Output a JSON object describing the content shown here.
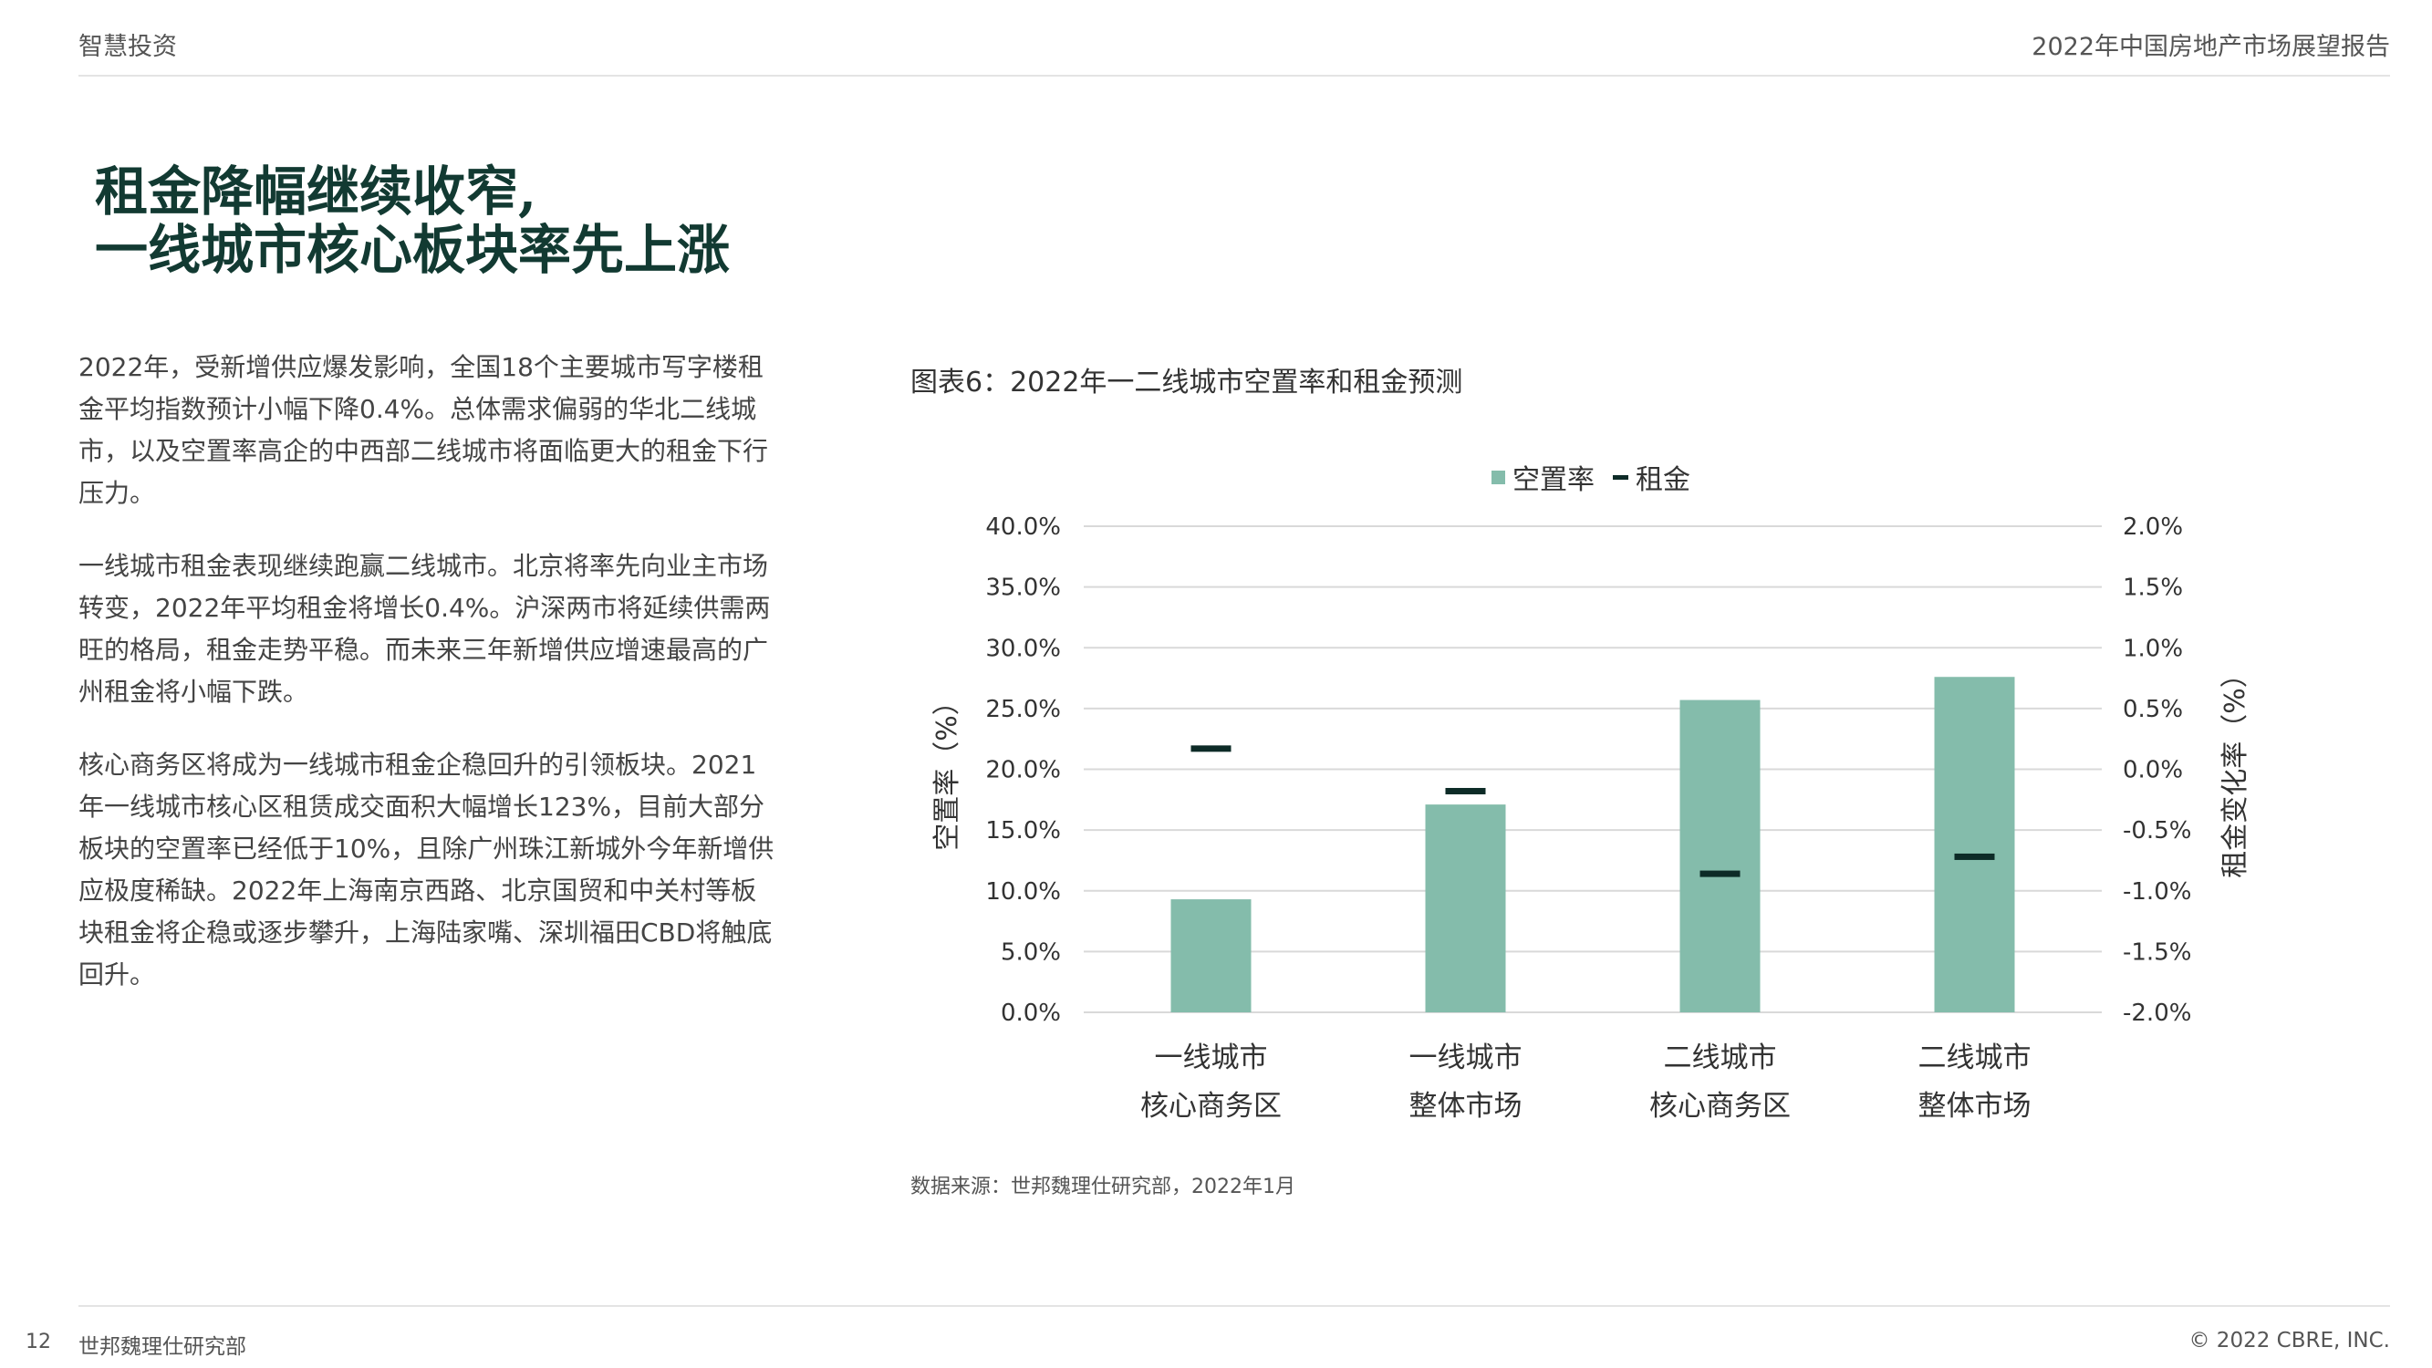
{
  "header": {
    "left": "智慧投资",
    "right": "2022年中国房地产市场展望报告"
  },
  "title": {
    "line1": "租金降幅继续收窄,",
    "line2": "一线城市核心板块率先上涨"
  },
  "body": {
    "p1": "2022年，受新增供应爆发影响，全国18个主要城市写字楼租金平均指数预计小幅下降0.4%。总体需求偏弱的华北二线城市，以及空置率高企的中西部二线城市将面临更大的租金下行压力。",
    "p2": "一线城市租金表现继续跑赢二线城市。北京将率先向业主市场转变，2022年平均租金将增长0.4%。沪深两市将延续供需两旺的格局，租金走势平稳。而未来三年新增供应增速最高的广州租金将小幅下跌。",
    "p3": "核心商务区将成为一线城市租金企稳回升的引领板块。2021年一线城市核心区租赁成交面积大幅增长123%，目前大部分板块的空置率已经低于10%，且除广州珠江新城外今年新增供应极度稀缺。2022年上海南京西路、北京国贸和中关村等板块租金将企稳或逐步攀升，上海陆家嘴、深圳福田CBD将触底回升。"
  },
  "figure": {
    "title": "图表6：2022年一二线城市空置率和租金预测"
  },
  "source": "数据来源：世邦魏理仕研究部，2022年1月",
  "footer": {
    "page": "12",
    "left": "世邦魏理仕研究部",
    "right": "© 2022 CBRE, INC."
  },
  "colors": {
    "bar": "#84bcab",
    "marker": "#0d2b27",
    "title": "#123a32",
    "grid": "#d9d9d9"
  },
  "chart_data": {
    "type": "bar",
    "categories": [
      [
        "一线城市",
        "核心商务区"
      ],
      [
        "一线城市",
        "整体市场"
      ],
      [
        "二线城市",
        "核心商务区"
      ],
      [
        "二线城市",
        "整体市场"
      ]
    ],
    "series": [
      {
        "name": "空置率",
        "axis": "left",
        "type": "bar",
        "values": [
          9.3,
          17.1,
          25.7,
          27.6
        ]
      },
      {
        "name": "租金",
        "axis": "right",
        "type": "marker",
        "values": [
          0.17,
          -0.18,
          -0.86,
          -0.72
        ]
      }
    ],
    "ylabel": "空置率（%）",
    "y2label": "租金变化率（%）",
    "ylim": [
      0,
      40
    ],
    "y2lim": [
      -2,
      2
    ],
    "yticks": [
      "0.0%",
      "5.0%",
      "10.0%",
      "15.0%",
      "20.0%",
      "25.0%",
      "30.0%",
      "35.0%",
      "40.0%"
    ],
    "y2ticks": [
      "-2.0%",
      "-1.5%",
      "-1.0%",
      "-0.5%",
      "0.0%",
      "0.5%",
      "1.0%",
      "1.5%",
      "2.0%"
    ],
    "grid": true,
    "legend": "top"
  }
}
